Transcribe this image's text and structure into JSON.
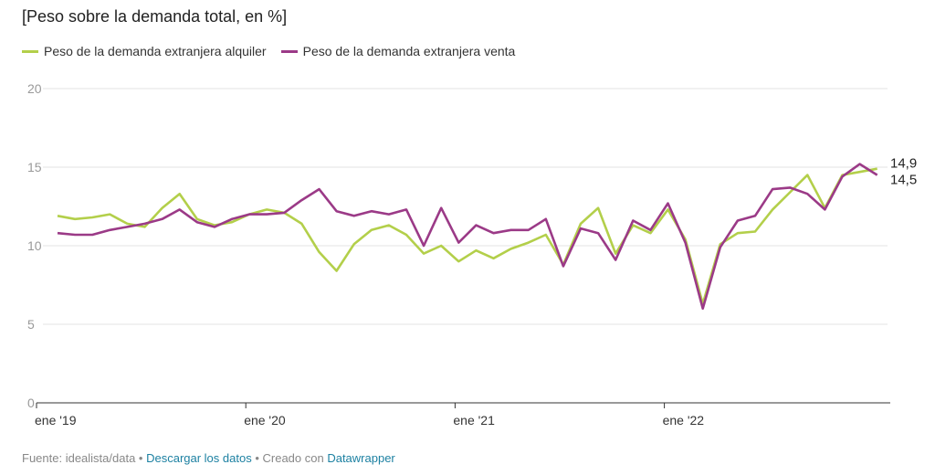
{
  "title": "[Peso sobre la demanda total, en %]",
  "footer": {
    "source": "Fuente: idealista/data",
    "sep1": " • ",
    "download": "Descargar los datos",
    "sep2": " • Creado con ",
    "tool": "Datawrapper"
  },
  "chart_data": {
    "type": "line",
    "title": "[Peso sobre la demanda total, en %]",
    "xlabel": "",
    "ylabel": "",
    "ylim": [
      0,
      20
    ],
    "yticks": [
      "0",
      "5",
      "10",
      "15",
      "20"
    ],
    "ytick_values": [
      0,
      5,
      10,
      15,
      20
    ],
    "xticks": [
      {
        "index": 0,
        "label": "ene '19"
      },
      {
        "index": 12,
        "label": "ene '20"
      },
      {
        "index": 24,
        "label": "ene '21"
      },
      {
        "index": 36,
        "label": "ene '22"
      }
    ],
    "x_count": 48,
    "grid": true,
    "legend_position": "top-left",
    "series": [
      {
        "name": "Peso de la demanda extranjera alquiler",
        "color": "#b3cf4a",
        "end_label": "14,9",
        "values": [
          11.9,
          11.7,
          11.8,
          12.0,
          11.4,
          11.2,
          12.4,
          13.3,
          11.7,
          11.3,
          11.5,
          12.0,
          12.3,
          12.1,
          11.4,
          9.6,
          8.4,
          10.1,
          11.0,
          11.3,
          10.7,
          9.5,
          10.0,
          9.0,
          9.7,
          9.2,
          9.8,
          10.2,
          10.7,
          8.8,
          11.4,
          12.4,
          9.5,
          11.3,
          10.8,
          12.3,
          10.4,
          6.3,
          10.1,
          10.8,
          10.9,
          12.3,
          13.4,
          14.5,
          12.4,
          14.5,
          14.7,
          14.9
        ]
      },
      {
        "name": "Peso de la demanda extranjera venta",
        "color": "#9b3a87",
        "end_label": "14,5",
        "values": [
          10.8,
          10.7,
          10.7,
          11.0,
          11.2,
          11.4,
          11.7,
          12.3,
          11.5,
          11.2,
          11.7,
          12.0,
          12.0,
          12.1,
          12.9,
          13.6,
          12.2,
          11.9,
          12.2,
          12.0,
          12.3,
          10.0,
          12.4,
          10.2,
          11.3,
          10.8,
          11.0,
          11.0,
          11.7,
          8.7,
          11.1,
          10.8,
          9.1,
          11.6,
          11.0,
          12.7,
          10.2,
          6.0,
          9.9,
          11.6,
          11.9,
          13.6,
          13.7,
          13.3,
          12.3,
          14.4,
          15.2,
          14.5
        ]
      }
    ]
  }
}
